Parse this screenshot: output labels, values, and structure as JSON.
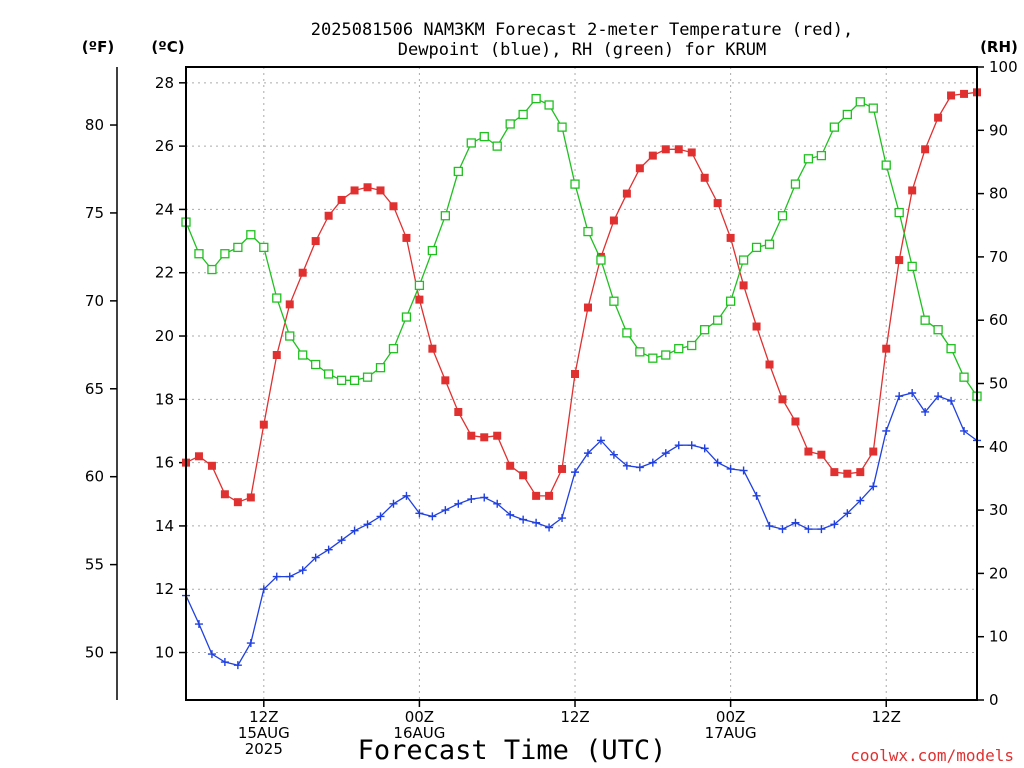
{
  "chart_data": {
    "type": "line",
    "title_line1": "2025081506 NAM3KM Forecast 2-meter Temperature (red),",
    "title_line2": "Dewpoint (blue), RH (green) for KRUM",
    "xlabel": "Forecast Time (UTC)",
    "unit_f": "(ºF)",
    "unit_c": "(ºC)",
    "unit_rh": "(RH)",
    "credit": "coolwx.com/models",
    "x_range_hours": [
      6,
      67
    ],
    "ylim_c": [
      8.5,
      28.5
    ],
    "ylim_rh": [
      0,
      100
    ],
    "yticks_c": [
      10,
      12,
      14,
      16,
      18,
      20,
      22,
      24,
      26,
      28
    ],
    "yticks_f": [
      50,
      55,
      60,
      65,
      70,
      75,
      80
    ],
    "yticks_rh": [
      0,
      10,
      20,
      30,
      40,
      50,
      60,
      70,
      80,
      90,
      100
    ],
    "x_tick_hours": [
      12,
      24,
      36,
      48,
      60
    ],
    "x_tick_labels": [
      [
        "12Z",
        "15AUG",
        "2025"
      ],
      [
        "00Z",
        "16AUG"
      ],
      [
        "12Z"
      ],
      [
        "00Z",
        "17AUG"
      ],
      [
        "12Z"
      ]
    ],
    "grid": true,
    "series": [
      {
        "name": "Temperature",
        "color": "#e03030",
        "marker": "filled-square",
        "axis": "celsius",
        "x": [
          6,
          7,
          8,
          9,
          10,
          11,
          12,
          13,
          14,
          15,
          16,
          17,
          18,
          19,
          20,
          21,
          22,
          23,
          24,
          25,
          26,
          27,
          28,
          29,
          30,
          31,
          32,
          33,
          34,
          35,
          36,
          37,
          38,
          39,
          40,
          41,
          42,
          43,
          44,
          45,
          46,
          47,
          48,
          49,
          50,
          51,
          52,
          53,
          54,
          55,
          56,
          57,
          58,
          59,
          60,
          61,
          62,
          63,
          64,
          65,
          66,
          67
        ],
        "values": [
          16.0,
          16.2,
          15.9,
          15.0,
          14.75,
          14.9,
          17.2,
          19.4,
          21.0,
          22.0,
          23.0,
          23.8,
          24.3,
          24.6,
          24.7,
          24.6,
          24.1,
          23.1,
          21.15,
          19.6,
          18.6,
          17.6,
          16.85,
          16.8,
          16.85,
          15.9,
          15.6,
          14.95,
          14.95,
          15.8,
          18.8,
          20.9,
          22.5,
          23.65,
          24.5,
          25.3,
          25.7,
          25.9,
          25.9,
          25.8,
          25.0,
          24.2,
          23.1,
          21.6,
          20.3,
          19.1,
          18.0,
          17.3,
          16.35,
          16.25,
          15.7,
          15.65,
          15.7,
          16.35,
          19.6,
          22.4,
          24.6,
          25.9,
          26.9,
          27.6,
          27.65,
          27.7
        ]
      },
      {
        "name": "Dewpoint",
        "color": "#2040e0",
        "marker": "plus",
        "axis": "celsius",
        "x": [
          6,
          7,
          8,
          9,
          10,
          11,
          12,
          13,
          14,
          15,
          16,
          17,
          18,
          19,
          20,
          21,
          22,
          23,
          24,
          25,
          26,
          27,
          28,
          29,
          30,
          31,
          32,
          33,
          34,
          35,
          36,
          37,
          38,
          39,
          40,
          41,
          42,
          43,
          44,
          45,
          46,
          47,
          48,
          49,
          50,
          51,
          52,
          53,
          54,
          55,
          56,
          57,
          58,
          59,
          60,
          61,
          62,
          63,
          64,
          65,
          66,
          67
        ],
        "values": [
          11.8,
          10.9,
          9.95,
          9.7,
          9.6,
          10.3,
          12.0,
          12.4,
          12.4,
          12.6,
          13.0,
          13.25,
          13.55,
          13.85,
          14.05,
          14.3,
          14.7,
          14.95,
          14.4,
          14.3,
          14.5,
          14.7,
          14.85,
          14.9,
          14.7,
          14.35,
          14.2,
          14.1,
          13.95,
          14.25,
          15.7,
          16.3,
          16.7,
          16.25,
          15.9,
          15.85,
          16.0,
          16.3,
          16.55,
          16.55,
          16.45,
          16.0,
          15.8,
          15.75,
          14.95,
          14.0,
          13.9,
          14.1,
          13.9,
          13.9,
          14.05,
          14.4,
          14.8,
          15.25,
          17.0,
          18.1,
          18.2,
          17.6,
          18.1,
          17.95,
          17.0,
          16.7
        ]
      },
      {
        "name": "RH",
        "color": "#20c020",
        "marker": "open-square",
        "axis": "rh",
        "x": [
          6,
          7,
          8,
          9,
          10,
          11,
          12,
          13,
          14,
          15,
          16,
          17,
          18,
          19,
          20,
          21,
          22,
          23,
          24,
          25,
          26,
          27,
          28,
          29,
          30,
          31,
          32,
          33,
          34,
          35,
          36,
          37,
          38,
          39,
          40,
          41,
          42,
          43,
          44,
          45,
          46,
          47,
          48,
          49,
          50,
          51,
          52,
          53,
          54,
          55,
          56,
          57,
          58,
          59,
          60,
          61,
          62,
          63,
          64,
          65,
          66,
          67
        ],
        "values": [
          75.5,
          70.5,
          68.0,
          70.5,
          71.5,
          73.5,
          71.5,
          63.5,
          57.5,
          54.5,
          53.0,
          51.5,
          50.5,
          50.5,
          51.0,
          52.5,
          55.5,
          60.5,
          65.5,
          71.0,
          76.5,
          83.5,
          88.0,
          89.0,
          87.5,
          91.0,
          92.5,
          95.0,
          94.0,
          90.5,
          81.5,
          74.0,
          69.5,
          63.0,
          58.0,
          55.0,
          54.0,
          54.5,
          55.5,
          56.0,
          58.5,
          60.0,
          63.0,
          69.5,
          71.5,
          72.0,
          76.5,
          81.5,
          85.5,
          86.0,
          90.5,
          92.5,
          94.5,
          93.5,
          84.5,
          77.0,
          68.5,
          60.0,
          58.5,
          55.5,
          51.0,
          48.0
        ]
      }
    ]
  }
}
